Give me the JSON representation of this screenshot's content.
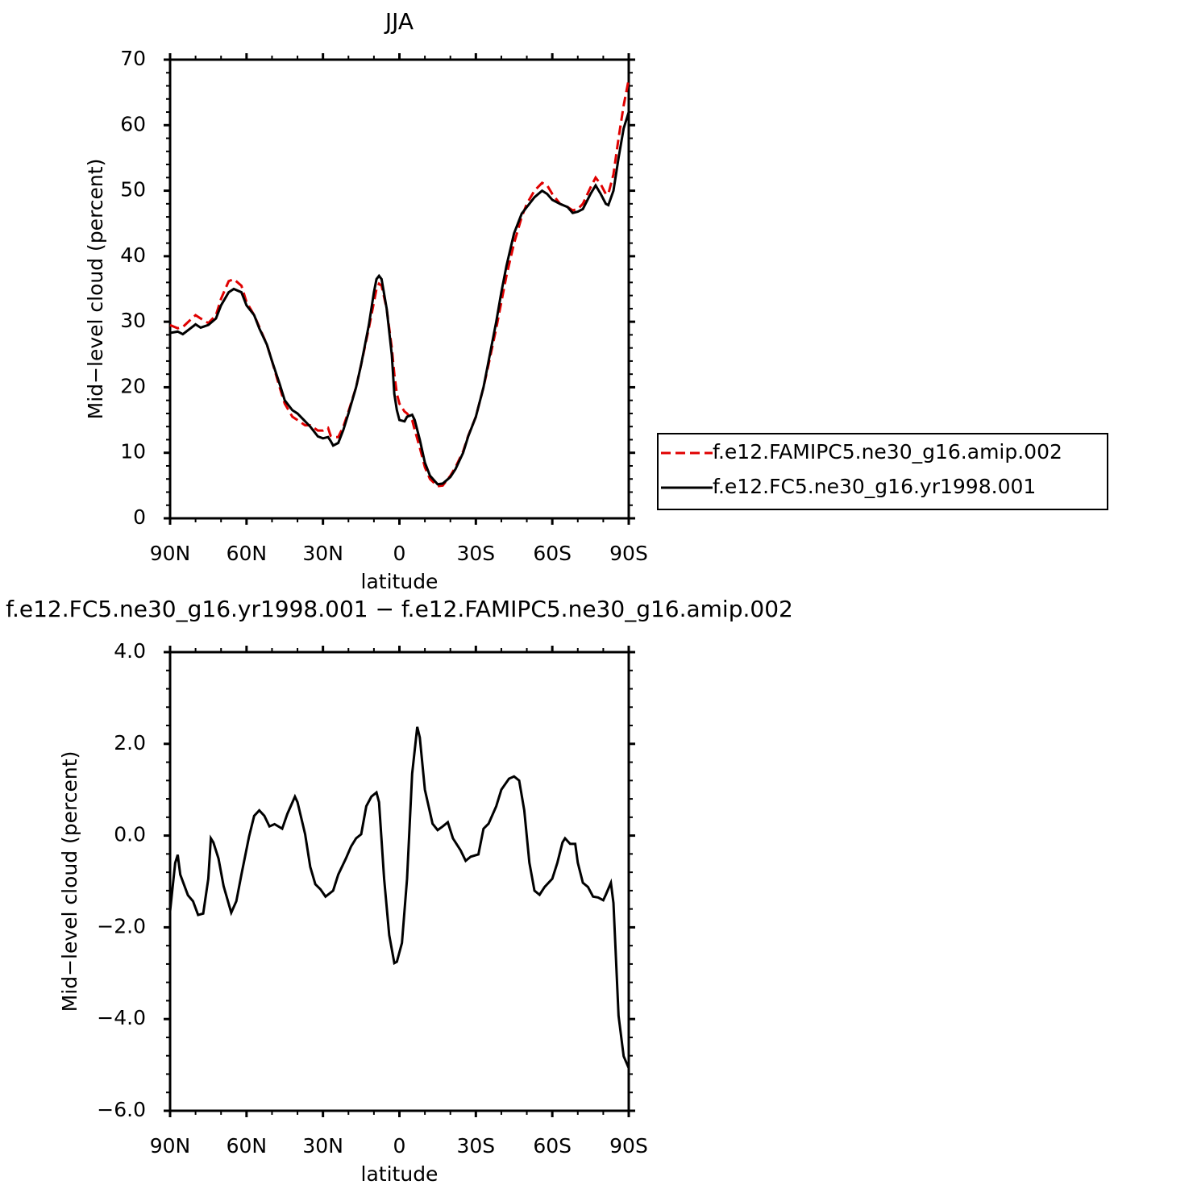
{
  "chart_data": [
    {
      "type": "line",
      "title": "JJA",
      "xlabel": "latitude",
      "ylabel": "Mid−level cloud (percent)",
      "x": [
        90,
        87,
        85,
        82,
        80,
        78,
        75,
        72,
        70,
        67,
        65,
        62,
        60,
        57,
        55,
        52,
        50,
        47,
        45,
        42,
        40,
        37,
        35,
        32,
        30,
        28,
        27,
        26,
        24,
        22,
        20,
        17,
        15,
        12,
        10,
        9,
        8,
        7,
        5,
        3,
        2,
        1,
        0,
        -2,
        -3,
        -5,
        -6,
        -8,
        -10,
        -12,
        -15,
        -17,
        -20,
        -22,
        -25,
        -27,
        -30,
        -33,
        -35,
        -38,
        -40,
        -42,
        -45,
        -48,
        -50,
        -53,
        -56,
        -58,
        -60,
        -63,
        -66,
        -68,
        -70,
        -72,
        -75,
        -77,
        -79,
        -81,
        -82,
        -84,
        -86,
        -88,
        -90
      ],
      "series": [
        {
          "name": "f.e12.FAMIPC5.ne30_g16.amip.002",
          "color": "#e00000",
          "line_style": "dashed",
          "values": [
            29.5,
            29.0,
            29.2,
            30.3,
            31.0,
            30.5,
            29.8,
            31.0,
            33.5,
            36.2,
            36.5,
            35.5,
            33.0,
            31.0,
            29.2,
            26.5,
            24.0,
            20.0,
            17.5,
            15.5,
            15.0,
            14.2,
            14.2,
            13.4,
            13.4,
            13.8,
            12.6,
            12.4,
            12.4,
            14.0,
            16.3,
            20.0,
            23.5,
            29.0,
            33.0,
            35.0,
            35.8,
            35.5,
            32.0,
            26.0,
            22.0,
            19.0,
            17.5,
            16.3,
            16.0,
            15.0,
            13.5,
            10.8,
            7.8,
            6.0,
            4.9,
            5.0,
            6.5,
            7.8,
            10.2,
            12.6,
            15.5,
            20.0,
            23.5,
            29.0,
            33.0,
            37.0,
            42.0,
            46.0,
            48.0,
            50.0,
            51.2,
            50.8,
            49.5,
            48.0,
            47.5,
            47.0,
            47.2,
            48.0,
            50.5,
            52.0,
            51.0,
            49.5,
            49.5,
            52.5,
            58.0,
            63.0,
            67.0
          ]
        },
        {
          "name": "f.e12.FC5.ne30_g16.yr1998.001",
          "color": "#000000",
          "line_style": "solid",
          "values": [
            28.3,
            28.5,
            28.1,
            29.0,
            29.6,
            29.1,
            29.5,
            30.5,
            32.5,
            34.5,
            35.0,
            34.5,
            32.5,
            31.0,
            29.0,
            26.5,
            24.0,
            20.5,
            18.0,
            16.5,
            16.0,
            14.8,
            14.0,
            12.5,
            12.2,
            12.4,
            11.8,
            11.1,
            11.5,
            13.5,
            16.0,
            20.0,
            23.5,
            29.5,
            34.5,
            36.5,
            37.0,
            36.5,
            32.0,
            25.0,
            19.0,
            16.5,
            15.0,
            14.8,
            15.5,
            15.8,
            15.0,
            12.0,
            8.5,
            6.5,
            5.2,
            5.3,
            6.3,
            7.5,
            10.0,
            12.5,
            15.5,
            20.0,
            24.0,
            30.0,
            34.5,
            38.5,
            43.5,
            46.5,
            47.5,
            49.0,
            50.0,
            49.5,
            48.6,
            48.0,
            47.5,
            46.6,
            46.8,
            47.2,
            49.5,
            50.8,
            49.5,
            48.0,
            47.8,
            50.0,
            55.0,
            59.5,
            62.0
          ]
        }
      ],
      "xlim": [
        90,
        -90
      ],
      "xticks": [
        {
          "value": 90,
          "label": "90N"
        },
        {
          "value": 60,
          "label": "60N"
        },
        {
          "value": 30,
          "label": "30N"
        },
        0,
        {
          "value": -30,
          "label": "30S"
        },
        {
          "value": -60,
          "label": "60S"
        },
        {
          "value": -90,
          "label": "90S"
        }
      ],
      "ylim": [
        0,
        70
      ],
      "yticks": [
        0,
        10,
        20,
        30,
        40,
        50,
        60,
        70
      ],
      "legend": "right"
    },
    {
      "type": "line",
      "title": "f.e12.FC5.ne30_g16.yr1998.001 − f.e12.FAMIPC5.ne30_g16.amip.002",
      "xlabel": "latitude",
      "ylabel": "Mid−level cloud (percent)",
      "x": [
        90,
        88,
        87,
        86,
        83,
        81,
        79,
        77,
        75,
        74,
        73,
        71,
        69,
        66,
        64,
        62,
        59,
        57,
        55,
        53,
        51,
        49,
        46,
        44,
        41,
        40,
        37,
        35,
        33,
        31,
        29,
        26,
        24,
        21,
        19,
        17,
        15,
        13,
        11,
        9,
        8,
        6,
        4,
        2,
        1,
        -1,
        -3,
        -5,
        -7,
        -8,
        -10,
        -13,
        -15,
        -17,
        -19,
        -21,
        -24,
        -26,
        -28,
        -31,
        -33,
        -35,
        -38,
        -40,
        -43,
        -45,
        -47,
        -49,
        -51,
        -53,
        -55,
        -57,
        -60,
        -62,
        -64,
        -65,
        -67,
        -69,
        -70,
        -72,
        -74,
        -76,
        -78,
        -80,
        -81,
        -83,
        -84,
        -86,
        -88,
        -90
      ],
      "series": [
        {
          "color": "#000000",
          "line_style": "solid",
          "values": [
            -1.65,
            -0.6,
            -0.42,
            -0.85,
            -1.3,
            -1.43,
            -1.73,
            -1.7,
            -0.94,
            -0.06,
            -0.15,
            -0.5,
            -1.1,
            -1.68,
            -1.43,
            -0.85,
            -0.02,
            0.43,
            0.55,
            0.43,
            0.2,
            0.25,
            0.15,
            0.47,
            0.85,
            0.73,
            0.03,
            -0.68,
            -1.06,
            -1.17,
            -1.33,
            -1.2,
            -0.85,
            -0.5,
            -0.24,
            -0.06,
            0.03,
            0.64,
            0.85,
            0.94,
            0.73,
            -0.94,
            -2.17,
            -2.78,
            -2.75,
            -2.34,
            -0.94,
            1.35,
            2.37,
            2.14,
            1.0,
            0.26,
            0.12,
            0.2,
            0.29,
            -0.06,
            -0.32,
            -0.55,
            -0.46,
            -0.41,
            0.15,
            0.26,
            0.64,
            1.0,
            1.24,
            1.29,
            1.2,
            0.55,
            -0.59,
            -1.2,
            -1.29,
            -1.12,
            -0.94,
            -0.59,
            -0.15,
            -0.06,
            -0.18,
            -0.18,
            -0.59,
            -1.03,
            -1.12,
            -1.33,
            -1.35,
            -1.41,
            -1.29,
            -1.03,
            -1.47,
            -3.93,
            -4.81,
            -5.07
          ]
        }
      ],
      "xlim": [
        90,
        -90
      ],
      "xticks": [
        {
          "value": 90,
          "label": "90N"
        },
        {
          "value": 60,
          "label": "60N"
        },
        {
          "value": 30,
          "label": "30N"
        },
        0,
        {
          "value": -30,
          "label": "30S"
        },
        {
          "value": -60,
          "label": "60S"
        },
        {
          "value": -90,
          "label": "90S"
        }
      ],
      "ylim": [
        -6,
        4
      ],
      "yticks": [
        {
          "value": 4,
          "label": "4.0"
        },
        {
          "value": 2,
          "label": "2.0"
        },
        {
          "value": 0,
          "label": "0.0"
        },
        {
          "value": -2,
          "label": "−2.0"
        },
        {
          "value": -4,
          "label": "−4.0"
        },
        {
          "value": -6,
          "label": "−6.0"
        }
      ]
    }
  ]
}
